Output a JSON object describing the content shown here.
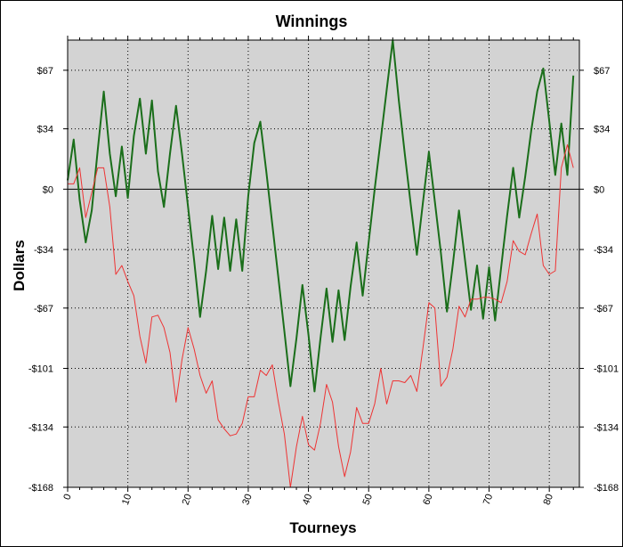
{
  "chart_data": {
    "type": "line",
    "title": "Winnings",
    "xlabel": "Tourneys",
    "ylabel": "Dollars",
    "xlim": [
      0,
      85
    ],
    "ylim": [
      -168,
      84
    ],
    "x_ticks": [
      0,
      10,
      20,
      30,
      40,
      50,
      60,
      70,
      80
    ],
    "x_tick_labels": [
      "0",
      "10",
      "20",
      "30",
      "40",
      "50",
      "60",
      "70",
      "80"
    ],
    "y_ticks": [
      67,
      34,
      0,
      -34,
      -67,
      -101,
      -134,
      -168
    ],
    "y_tick_labels": [
      "$67",
      "$34",
      "$0",
      "-$34",
      "-$67",
      "-$101",
      "-$134",
      "-$168"
    ],
    "grid": true,
    "background": "#d3d3d3",
    "series": [
      {
        "color": "#1a6e1a",
        "x": [
          0,
          1,
          2,
          3,
          4,
          5,
          6,
          7,
          8,
          9,
          10,
          11,
          12,
          13,
          14,
          15,
          16,
          17,
          18,
          19,
          20,
          21,
          22,
          23,
          24,
          25,
          26,
          27,
          28,
          29,
          30,
          31,
          32,
          33,
          34,
          35,
          36,
          37,
          38,
          39,
          40,
          41,
          42,
          43,
          44,
          45,
          46,
          47,
          48,
          49,
          50,
          51,
          52,
          53,
          54,
          55,
          56,
          57,
          58,
          59,
          60,
          61,
          62,
          63,
          64,
          65,
          66,
          67,
          68,
          69,
          70,
          71,
          72,
          73,
          74,
          75,
          76,
          77,
          78,
          79,
          80,
          81,
          82,
          83,
          84
        ],
        "values": [
          5,
          28,
          -6,
          -30,
          -12,
          22,
          55,
          20,
          -4,
          24,
          -5,
          30,
          51,
          20,
          50,
          10,
          -10,
          20,
          47,
          20,
          -10,
          -40,
          -72,
          -46,
          -15,
          -45,
          -16,
          -46,
          -17,
          -46,
          -4,
          26,
          38,
          10,
          -20,
          -50,
          -80,
          -111,
          -84,
          -54,
          -82,
          -114,
          -84,
          -56,
          -86,
          -57,
          -85,
          -55,
          -30,
          -60,
          -30,
          0,
          28,
          56,
          84,
          50,
          20,
          -9,
          -37,
          -8,
          21,
          -7,
          -36,
          -69,
          -42,
          -12,
          -40,
          -68,
          -43,
          -73,
          -44,
          -74,
          -44,
          -15,
          12,
          -16,
          7,
          33,
          55,
          68,
          38,
          8,
          37,
          8,
          64
        ],
        "linewidth": 2
      },
      {
        "color": "#ee3333",
        "x": [
          0,
          1,
          2,
          3,
          4,
          5,
          6,
          7,
          8,
          9,
          10,
          11,
          12,
          13,
          14,
          15,
          16,
          17,
          18,
          19,
          20,
          21,
          22,
          23,
          24,
          25,
          26,
          27,
          28,
          29,
          30,
          31,
          32,
          33,
          34,
          35,
          36,
          37,
          38,
          39,
          40,
          41,
          42,
          43,
          44,
          45,
          46,
          47,
          48,
          49,
          50,
          51,
          52,
          53,
          54,
          55,
          56,
          57,
          58,
          59,
          60,
          61,
          62,
          63,
          64,
          65,
          66,
          67,
          68,
          69,
          70,
          71,
          72,
          73,
          74,
          75,
          76,
          77,
          78,
          79,
          80,
          81,
          82,
          83,
          84
        ],
        "values": [
          3,
          3,
          12,
          -16,
          -2,
          12,
          12,
          -10,
          -48,
          -43,
          -52,
          -60,
          -83,
          -98,
          -72,
          -71,
          -78,
          -92,
          -120,
          -96,
          -78,
          -90,
          -105,
          -115,
          -108,
          -130,
          -135,
          -139,
          -138,
          -132,
          -117,
          -117,
          -102,
          -105,
          -99,
          -120,
          -138,
          -168,
          -145,
          -128,
          -144,
          -147,
          -132,
          -110,
          -120,
          -145,
          -162,
          -148,
          -123,
          -132,
          -132,
          -121,
          -101,
          -121,
          -108,
          -108,
          -109,
          -105,
          -114,
          -90,
          -64,
          -67,
          -111,
          -106,
          -90,
          -66,
          -72,
          -62,
          -62,
          -61,
          -61,
          -62,
          -64,
          -52,
          -29,
          -35,
          -37,
          -25,
          -14,
          -43,
          -48,
          -46,
          12,
          25,
          12
        ],
        "linewidth": 1
      }
    ]
  }
}
